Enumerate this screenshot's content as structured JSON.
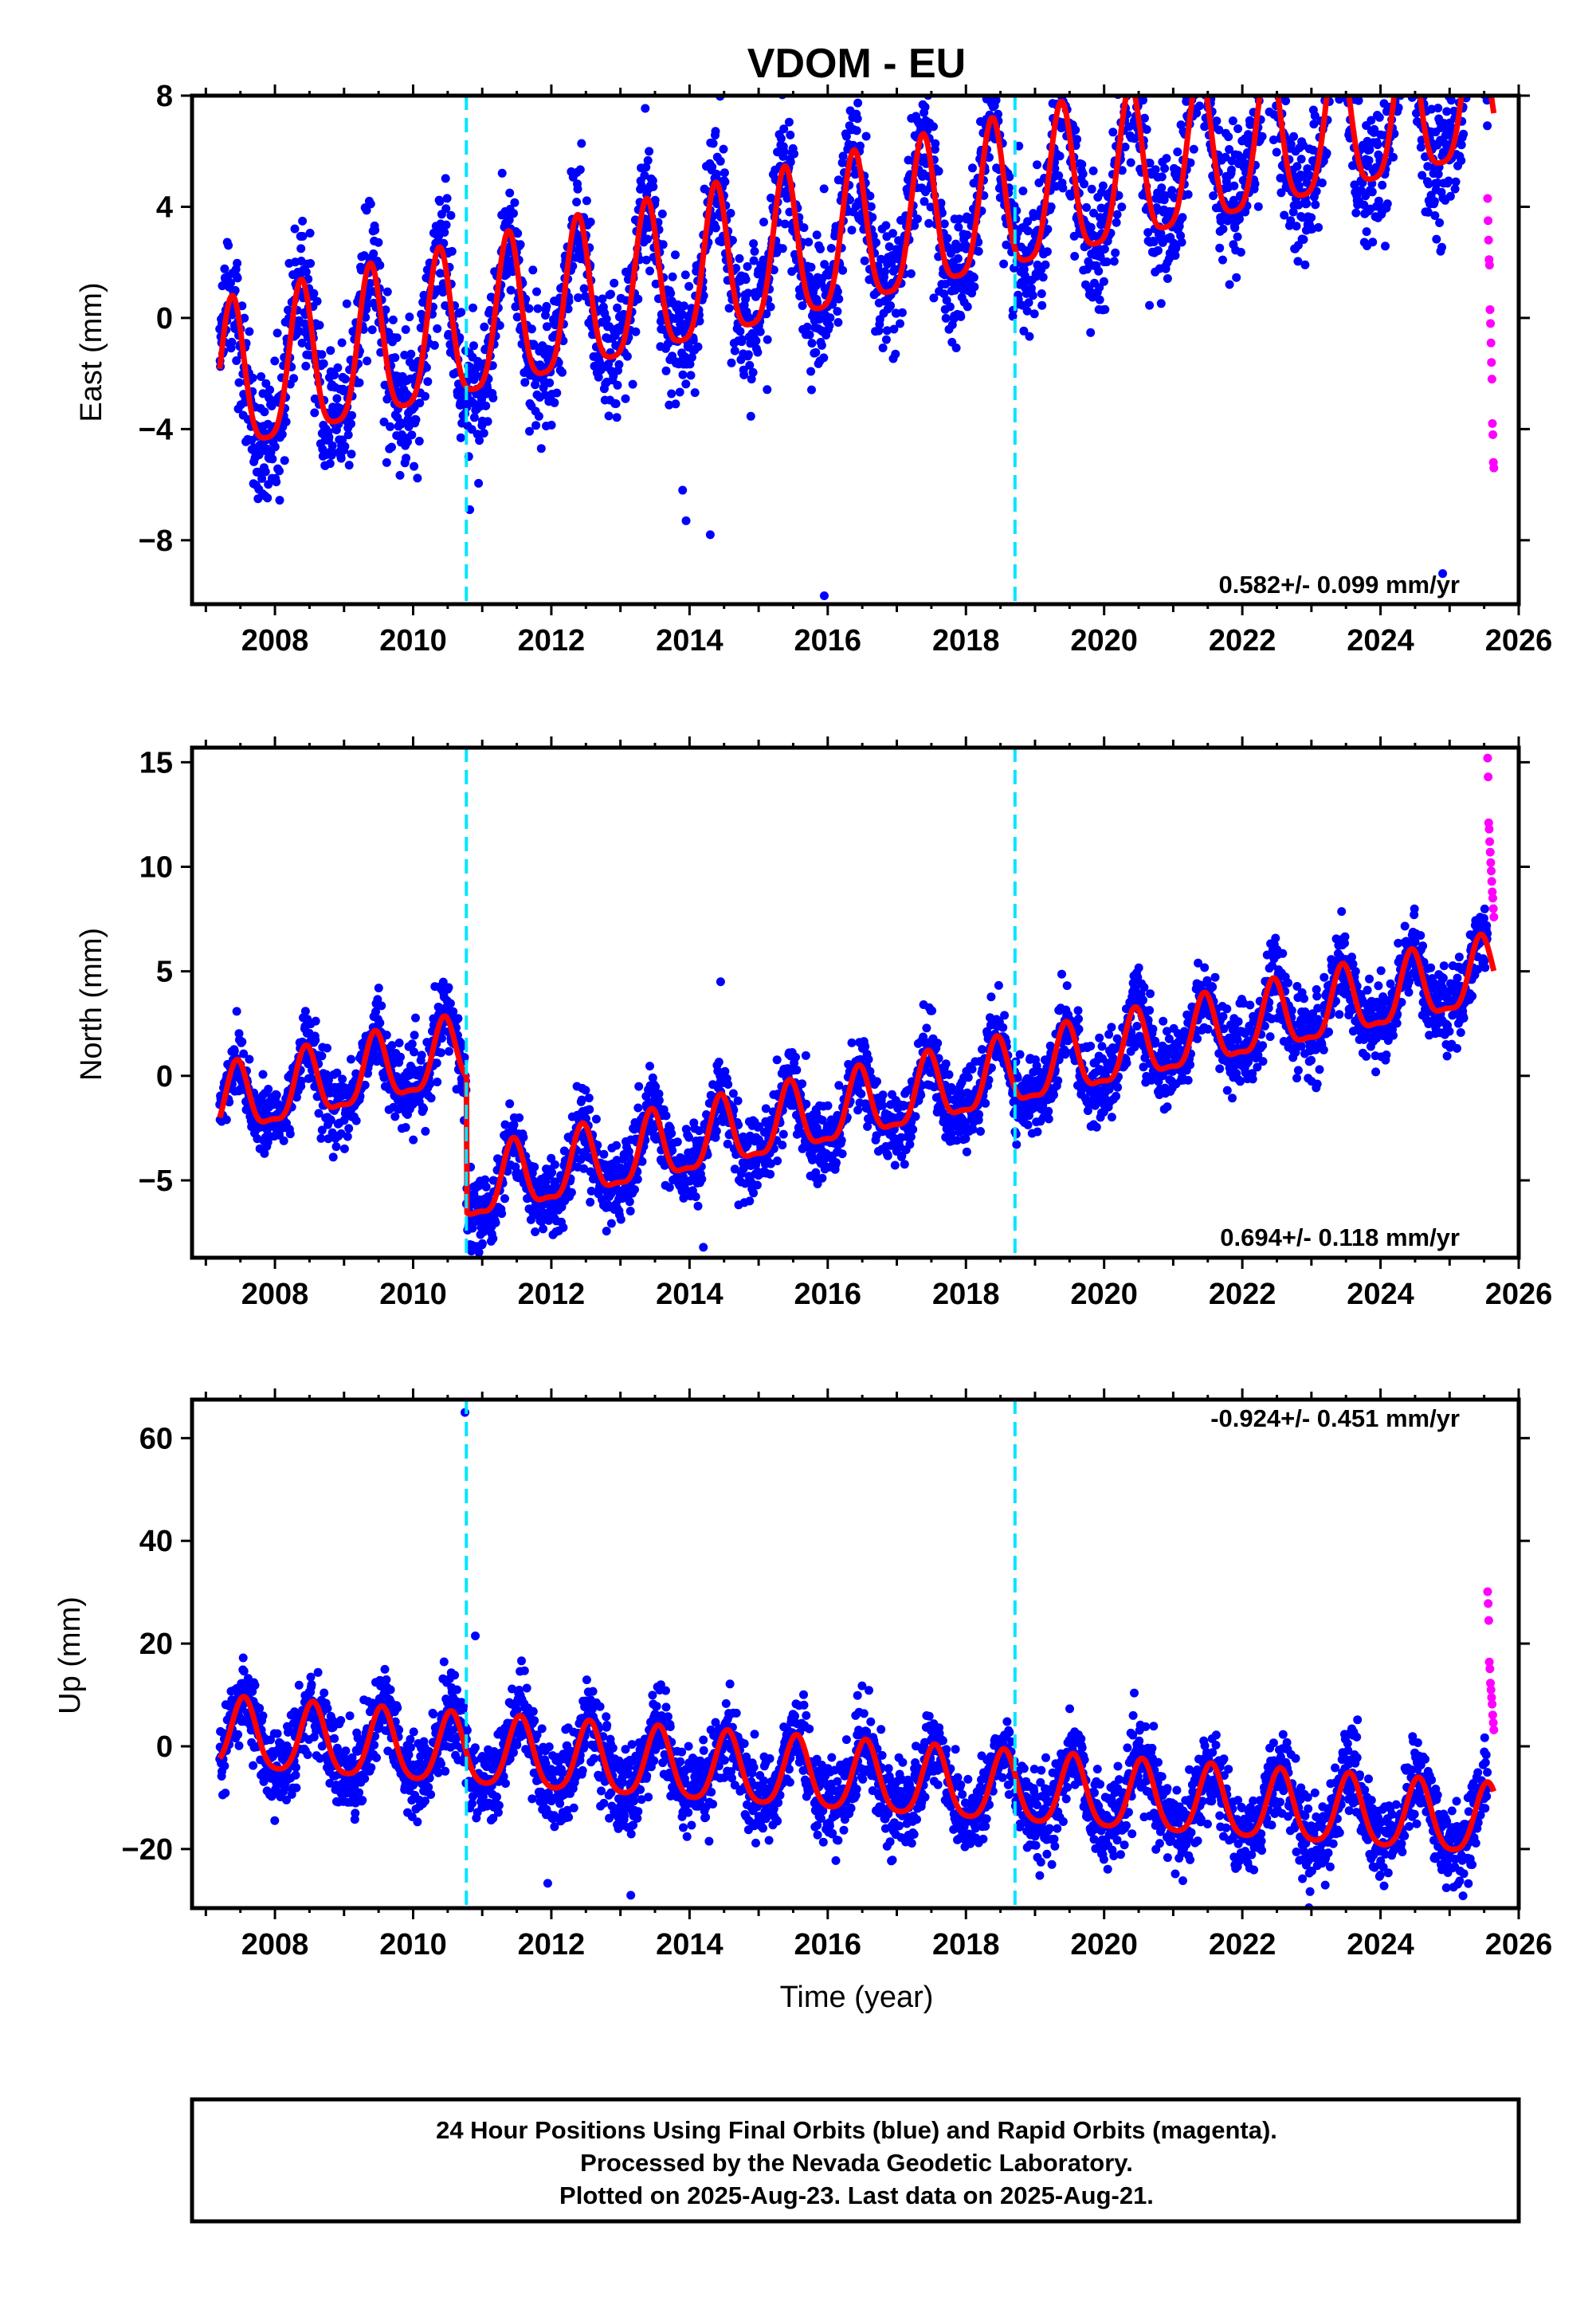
{
  "title": "VDOM - EU",
  "colors": {
    "final_orbits": "#0000ff",
    "rapid_orbits": "#ff00ff",
    "model": "#ff0000",
    "breaks": "#00e5ff"
  },
  "xlabel": "Time (year)",
  "footer": {
    "line1": "24 Hour Positions Using Final Orbits (blue) and Rapid Orbits (magenta).",
    "line2": "Processed by the Nevada Geodetic Laboratory.",
    "line3": "Plotted on 2025-Aug-23. Last data on 2025-Aug-21."
  },
  "chart_data": [
    {
      "type": "scatter",
      "ylabel": "East (mm)",
      "rate_text": "0.582+/- 0.099 mm/yr",
      "xlim": [
        2006.8,
        2026.0
      ],
      "ylim": [
        -10.3,
        8.0
      ],
      "x_ticks": [
        "2008",
        "2010",
        "2012",
        "2014",
        "2016",
        "2018",
        "2020",
        "2022",
        "2024",
        "2026"
      ],
      "y_ticks": [
        "8",
        "4",
        "0",
        "−4",
        "−8"
      ],
      "y_tick_values": [
        8,
        4,
        0,
        -4,
        -8
      ],
      "breaks": [
        2010.77,
        2018.71
      ],
      "trend": {
        "rate": 0.582,
        "offset": -2.6,
        "ref_year": 2007.2
      },
      "seasonal": {
        "annual_amp": 2.7,
        "phase_year": 0.38,
        "semiannual_amp": 0.6
      },
      "noise": 1.2,
      "rapid_points": {
        "x_start": 2025.55,
        "x_end": 2025.64,
        "values": [
          4.3,
          3.5,
          2.8,
          2.1,
          1.9,
          0.3,
          -0.2,
          -0.9,
          -1.6,
          -2.2,
          -3.8,
          -4.2,
          -5.2,
          -5.4
        ]
      },
      "outliers": [
        {
          "x": 2013.9,
          "y": -6.2
        },
        {
          "x": 2013.95,
          "y": -7.3
        },
        {
          "x": 2014.3,
          "y": -7.8
        },
        {
          "x": 2015.95,
          "y": -10.0
        },
        {
          "x": 2024.9,
          "y": -9.2
        },
        {
          "x": 2010.82,
          "y": -6.9
        }
      ]
    },
    {
      "type": "scatter",
      "ylabel": "North (mm)",
      "rate_text": "0.694+/- 0.118 mm/yr",
      "xlim": [
        2006.8,
        2026.0
      ],
      "ylim": [
        -8.7,
        15.7
      ],
      "x_ticks": [
        "2008",
        "2010",
        "2012",
        "2014",
        "2016",
        "2018",
        "2020",
        "2022",
        "2024",
        "2026"
      ],
      "y_ticks": [
        "15",
        "10",
        "5",
        "0",
        "−5"
      ],
      "y_tick_values": [
        15,
        10,
        5,
        0,
        -5
      ],
      "breaks": [
        2010.77,
        2018.71
      ],
      "offsets_at_breaks": [
        -6.5,
        0.0
      ],
      "trend": {
        "rate": 0.694,
        "offset": -1.5,
        "ref_year": 2007.2
      },
      "seasonal": {
        "annual_amp": 1.6,
        "phase_year": 0.45,
        "semiannual_amp": 0.5
      },
      "noise": 0.9,
      "rapid_points": {
        "x_start": 2025.55,
        "x_end": 2025.64,
        "values": [
          15.2,
          14.3,
          12.1,
          11.8,
          11.2,
          10.7,
          10.2,
          9.8,
          9.3,
          8.8,
          8.5,
          8.0,
          7.6
        ]
      },
      "outliers": [
        {
          "x": 2010.85,
          "y": -8.1
        },
        {
          "x": 2014.2,
          "y": -8.2
        },
        {
          "x": 2024.95,
          "y": 1.5
        },
        {
          "x": 2014.45,
          "y": 4.5
        }
      ]
    },
    {
      "type": "scatter",
      "ylabel": "Up (mm)",
      "rate_text": "-0.924+/- 0.451 mm/yr",
      "xlim": [
        2006.8,
        2026.0
      ],
      "ylim": [
        -31.5,
        67.5
      ],
      "x_ticks": [
        "2008",
        "2010",
        "2012",
        "2014",
        "2016",
        "2018",
        "2020",
        "2022",
        "2024",
        "2026"
      ],
      "y_ticks": [
        "60",
        "40",
        "20",
        "0",
        "−20"
      ],
      "y_tick_values": [
        60,
        40,
        20,
        0,
        -20
      ],
      "breaks": [
        2010.77,
        2018.71
      ],
      "trend": {
        "rate": -0.924,
        "offset": 2.0,
        "ref_year": 2007.2
      },
      "seasonal": {
        "annual_amp": 6.8,
        "phase_year": 0.55,
        "semiannual_amp": 1.2
      },
      "noise": 4.0,
      "rapid_points": {
        "x_start": 2025.55,
        "x_end": 2025.64,
        "values": [
          30.1,
          27.8,
          24.5,
          16.4,
          15.1,
          12.3,
          11.0,
          9.5,
          8.2,
          6.1,
          4.6,
          3.2
        ]
      },
      "outliers": [
        {
          "x": 2010.75,
          "y": 65.0
        },
        {
          "x": 2013.15,
          "y": -29.0
        },
        {
          "x": 2010.9,
          "y": 21.5
        }
      ]
    }
  ]
}
